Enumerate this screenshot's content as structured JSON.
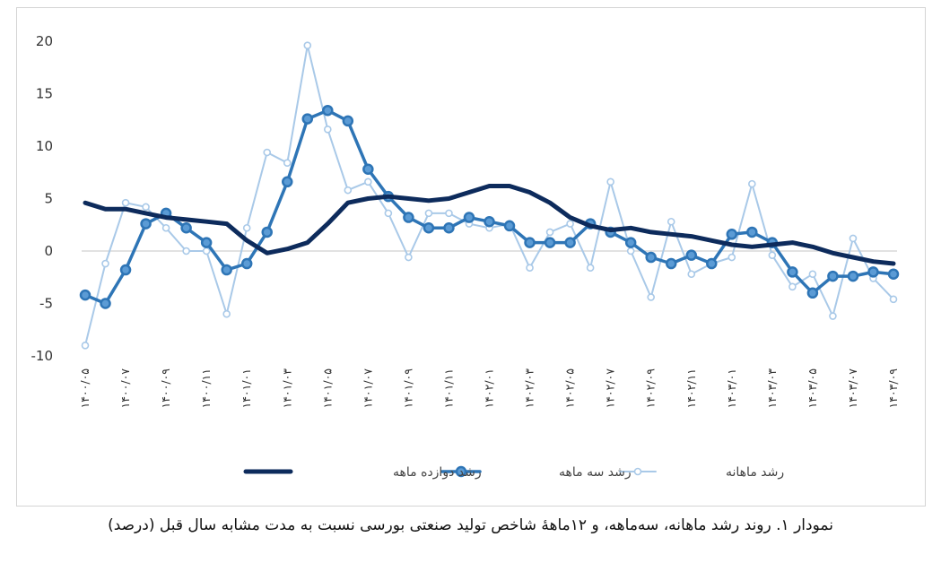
{
  "chart_data": {
    "type": "line",
    "title": "",
    "xlabel": "",
    "ylabel": "",
    "ylim": [
      -10,
      20
    ],
    "yticks": [
      -10,
      -5,
      0,
      5,
      10,
      15,
      20
    ],
    "ytick_labels": [
      "-10",
      "-5",
      "0",
      "5",
      "10",
      "15",
      "20"
    ],
    "grid": "none",
    "legend_position": "bottom",
    "x": [
      "۱۴۰۰/۰۵",
      "۱۴۰۰/۰۶",
      "۱۴۰۰/۰۷",
      "۱۴۰۰/۰۸",
      "۱۴۰۰/۰۹",
      "۱۴۰۰/۱۰",
      "۱۴۰۰/۱۱",
      "۱۴۰۰/۱۲",
      "۱۴۰۱/۰۱",
      "۱۴۰۱/۰۲",
      "۱۴۰۱/۰۳",
      "۱۴۰۱/۰۴",
      "۱۴۰۱/۰۵",
      "۱۴۰۱/۰۶",
      "۱۴۰۱/۰۷",
      "۱۴۰۱/۰۸",
      "۱۴۰۱/۰۹",
      "۱۴۰۱/۱۰",
      "۱۴۰۱/۱۱",
      "۱۴۰۱/۱۲",
      "۱۴۰۲/۰۱",
      "۱۴۰۲/۰۲",
      "۱۴۰۲/۰۳",
      "۱۴۰۲/۰۴",
      "۱۴۰۲/۰۵",
      "۱۴۰۲/۰۶",
      "۱۴۰۲/۰۷",
      "۱۴۰۲/۰۸",
      "۱۴۰۲/۰۹",
      "۱۴۰۲/۱۰",
      "۱۴۰۲/۱۱",
      "۱۴۰۲/۱۲",
      "۱۴۰۳/۰۱",
      "۱۴۰۳/۰۲",
      "۱۴۰۳/۰۳",
      "۱۴۰۳/۰۴",
      "۱۴۰۳/۰۵",
      "۱۴۰۳/۰۶",
      "۱۴۰۳/۰۷",
      "۱۴۰۳/۰۸",
      "۱۴۰۳/۰۹"
    ],
    "x_tick_labels": [
      "۱۴۰۰/۰۵",
      "۱۴۰۰/۰۷",
      "۱۴۰۰/۰۹",
      "۱۴۰۰/۱۱",
      "۱۴۰۱/۰۱",
      "۱۴۰۱/۰۳",
      "۱۴۰۱/۰۵",
      "۱۴۰۱/۰۷",
      "۱۴۰۱/۰۹",
      "۱۴۰۱/۱۱",
      "۱۴۰۲/۰۱",
      "۱۴۰۲/۰۳",
      "۱۴۰۲/۰۵",
      "۱۴۰۲/۰۷",
      "۱۴۰۲/۰۹",
      "۱۴۰۲/۱۱",
      "۱۴۰۳/۰۱",
      "۱۴۰۳/۰۳",
      "۱۴۰۳/۰۵",
      "۱۴۰۳/۰۷",
      "۱۴۰۳/۰۹"
    ],
    "series": [
      {
        "name": "رشد دوازده ماهه",
        "color": "#0d2b5c",
        "marker": "none",
        "values": [
          4.6,
          4.0,
          4.0,
          3.6,
          3.2,
          3.0,
          2.8,
          2.6,
          1.0,
          -0.2,
          0.2,
          0.8,
          2.6,
          4.6,
          5.0,
          5.2,
          5.0,
          4.8,
          5.0,
          5.6,
          6.2,
          6.2,
          5.6,
          4.6,
          3.2,
          2.4,
          2.0,
          2.2,
          1.8,
          1.6,
          1.4,
          1.0,
          0.6,
          0.4,
          0.6,
          0.8,
          0.4,
          -0.2,
          -0.6,
          -1.0,
          -1.2
        ]
      },
      {
        "name": "رشد سه ماهه",
        "color": "#2e75b6",
        "marker": "circle",
        "values": [
          -4.2,
          -5.0,
          -1.8,
          2.6,
          3.6,
          2.2,
          0.8,
          -1.8,
          -1.2,
          1.8,
          6.6,
          12.6,
          13.4,
          12.4,
          7.8,
          5.2,
          3.2,
          2.2,
          2.2,
          3.2,
          2.8,
          2.4,
          0.8,
          0.8,
          0.8,
          2.6,
          1.8,
          0.8,
          -0.6,
          -1.2,
          -0.4,
          -1.2,
          1.6,
          1.8,
          0.8,
          -2.0,
          -4.0,
          -2.4,
          -2.4,
          -2.0,
          -2.2
        ]
      },
      {
        "name": "رشد ماهانه",
        "color": "#a9c9e8",
        "marker": "circle",
        "values": [
          -9.0,
          -1.2,
          4.6,
          4.2,
          2.2,
          0.0,
          0.0,
          -6.0,
          2.2,
          9.4,
          8.4,
          19.6,
          11.6,
          5.8,
          6.6,
          3.6,
          -0.6,
          3.6,
          3.6,
          2.6,
          2.2,
          2.6,
          -1.6,
          1.8,
          2.6,
          -1.6,
          6.6,
          0.0,
          -4.4,
          2.8,
          -2.2,
          -1.2,
          -0.6,
          6.4,
          -0.4,
          -3.4,
          -2.2,
          -6.2,
          1.2,
          -2.6,
          -4.6
        ]
      }
    ]
  },
  "caption": "نمودار ۱. روند رشد ماهانه، سه‌ماهه، و ۱۲ماههٔ شاخص تولید صنعتی بورسی نسبت به مدت مشابه سال قبل (درصد)"
}
